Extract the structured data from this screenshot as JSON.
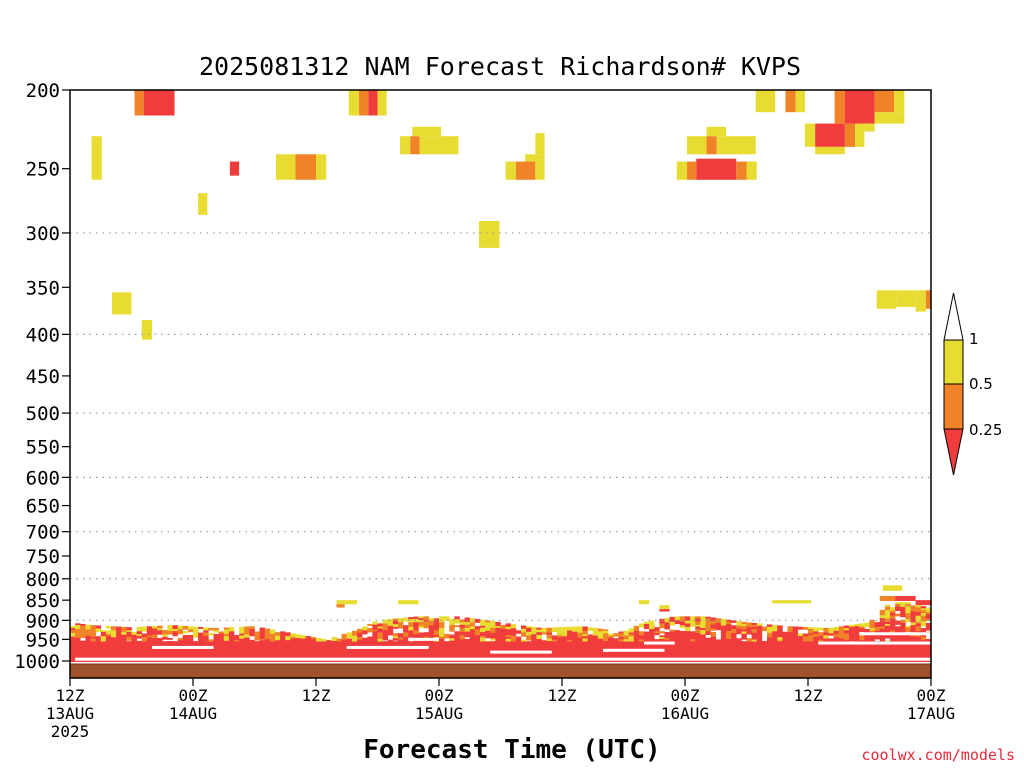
{
  "chart_data": {
    "type": "heatmap",
    "title": "2025081312 NAM Forecast Richardson# KVPS",
    "xlabel": "Forecast Time (UTC)",
    "ylabel": "",
    "y_axis": {
      "scale": "pressure (log)",
      "ticks": [
        "200",
        "250",
        "300",
        "350",
        "400",
        "450",
        "500",
        "550",
        "600",
        "650",
        "700",
        "750",
        "800",
        "850",
        "900",
        "950",
        "1000"
      ],
      "gridlines": [
        "300",
        "400",
        "500",
        "600",
        "700",
        "800",
        "900"
      ]
    },
    "x_axis": {
      "hour_range": [
        0,
        84
      ],
      "ticks": [
        {
          "hour": 0,
          "label": "12Z",
          "date": "13AUG",
          "year": "2025"
        },
        {
          "hour": 12,
          "label": "00Z",
          "date": "14AUG",
          "year": ""
        },
        {
          "hour": 24,
          "label": "12Z",
          "date": "",
          "year": ""
        },
        {
          "hour": 36,
          "label": "00Z",
          "date": "15AUG",
          "year": ""
        },
        {
          "hour": 48,
          "label": "12Z",
          "date": "",
          "year": ""
        },
        {
          "hour": 60,
          "label": "00Z",
          "date": "16AUG",
          "year": ""
        },
        {
          "hour": 72,
          "label": "12Z",
          "date": "",
          "year": ""
        },
        {
          "hour": 84,
          "label": "00Z",
          "date": "17AUG",
          "year": ""
        }
      ]
    },
    "colorbar": {
      "labels": [
        "1",
        "0.5",
        "0.25"
      ],
      "bins": [
        {
          "range": "0.5-1",
          "color": "#e8dc32"
        },
        {
          "range": "0.25-0.5",
          "color": "#f08228"
        },
        {
          "range": "<0.25",
          "color": "#f03c3c"
        }
      ],
      "above_color": "#ffffff"
    },
    "colors": {
      "yellow": "#e8dc32",
      "orange": "#f08228",
      "red": "#f03c3c",
      "ground": "#a0522d"
    },
    "regions": [
      {
        "h0": 6.3,
        "h1": 7.2,
        "p0": 200,
        "p1": 215,
        "c": "orange"
      },
      {
        "h0": 7.2,
        "h1": 10.2,
        "p0": 200,
        "p1": 215,
        "c": "red"
      },
      {
        "h0": 2.1,
        "h1": 3.1,
        "p0": 228,
        "p1": 258,
        "c": "yellow"
      },
      {
        "h0": 12.5,
        "h1": 13.4,
        "p0": 268,
        "p1": 285,
        "c": "yellow"
      },
      {
        "h0": 15.6,
        "h1": 16.5,
        "p0": 245,
        "p1": 255,
        "c": "red"
      },
      {
        "h0": 20.1,
        "h1": 22.0,
        "p0": 240,
        "p1": 258,
        "c": "yellow"
      },
      {
        "h0": 22.0,
        "h1": 24.0,
        "p0": 240,
        "p1": 258,
        "c": "orange"
      },
      {
        "h0": 24.0,
        "h1": 25.0,
        "p0": 240,
        "p1": 258,
        "c": "yellow"
      },
      {
        "h0": 27.2,
        "h1": 28.2,
        "p0": 200,
        "p1": 215,
        "c": "yellow"
      },
      {
        "h0": 28.2,
        "h1": 29.1,
        "p0": 200,
        "p1": 215,
        "c": "orange"
      },
      {
        "h0": 29.1,
        "h1": 30.0,
        "p0": 200,
        "p1": 215,
        "c": "red"
      },
      {
        "h0": 30.0,
        "h1": 30.9,
        "p0": 200,
        "p1": 215,
        "c": "yellow"
      },
      {
        "h0": 32.2,
        "h1": 33.2,
        "p0": 228,
        "p1": 240,
        "c": "yellow"
      },
      {
        "h0": 33.2,
        "h1": 34.1,
        "p0": 228,
        "p1": 240,
        "c": "orange"
      },
      {
        "h0": 34.1,
        "h1": 37.9,
        "p0": 228,
        "p1": 240,
        "c": "yellow"
      },
      {
        "h0": 33.4,
        "h1": 36.2,
        "p0": 222,
        "p1": 228,
        "c": "yellow"
      },
      {
        "h0": 39.9,
        "h1": 41.9,
        "p0": 290,
        "p1": 313,
        "c": "yellow"
      },
      {
        "h0": 42.5,
        "h1": 43.5,
        "p0": 245,
        "p1": 258,
        "c": "yellow"
      },
      {
        "h0": 43.5,
        "h1": 45.4,
        "p0": 245,
        "p1": 258,
        "c": "orange"
      },
      {
        "h0": 45.4,
        "h1": 46.3,
        "p0": 245,
        "p1": 258,
        "c": "yellow"
      },
      {
        "h0": 44.4,
        "h1": 46.3,
        "p0": 240,
        "p1": 245,
        "c": "yellow"
      },
      {
        "h0": 45.4,
        "h1": 46.3,
        "p0": 226,
        "p1": 240,
        "c": "yellow"
      },
      {
        "h0": 4.1,
        "h1": 6.0,
        "p0": 355,
        "p1": 378,
        "c": "yellow"
      },
      {
        "h0": 7.0,
        "h1": 8.0,
        "p0": 384,
        "p1": 406,
        "c": "yellow"
      },
      {
        "h0": 59.2,
        "h1": 60.2,
        "p0": 245,
        "p1": 258,
        "c": "yellow"
      },
      {
        "h0": 60.2,
        "h1": 61.1,
        "p0": 245,
        "p1": 258,
        "c": "orange"
      },
      {
        "h0": 61.1,
        "h1": 65.0,
        "p0": 243,
        "p1": 258,
        "c": "red"
      },
      {
        "h0": 65.0,
        "h1": 66.0,
        "p0": 245,
        "p1": 258,
        "c": "orange"
      },
      {
        "h0": 66.0,
        "h1": 67.0,
        "p0": 245,
        "p1": 258,
        "c": "yellow"
      },
      {
        "h0": 60.2,
        "h1": 62.1,
        "p0": 228,
        "p1": 240,
        "c": "yellow"
      },
      {
        "h0": 62.1,
        "h1": 63.1,
        "p0": 228,
        "p1": 240,
        "c": "orange"
      },
      {
        "h0": 63.1,
        "h1": 66.9,
        "p0": 228,
        "p1": 240,
        "c": "yellow"
      },
      {
        "h0": 62.1,
        "h1": 64.0,
        "p0": 222,
        "p1": 228,
        "c": "yellow"
      },
      {
        "h0": 66.9,
        "h1": 68.8,
        "p0": 200,
        "p1": 213,
        "c": "yellow"
      },
      {
        "h0": 69.8,
        "h1": 70.8,
        "p0": 200,
        "p1": 213,
        "c": "orange"
      },
      {
        "h0": 70.8,
        "h1": 71.7,
        "p0": 200,
        "p1": 213,
        "c": "yellow"
      },
      {
        "h0": 71.7,
        "h1": 72.7,
        "p0": 220,
        "p1": 235,
        "c": "yellow"
      },
      {
        "h0": 72.7,
        "h1": 75.6,
        "p0": 220,
        "p1": 235,
        "c": "red"
      },
      {
        "h0": 75.6,
        "h1": 76.6,
        "p0": 220,
        "p1": 235,
        "c": "orange"
      },
      {
        "h0": 76.6,
        "h1": 77.5,
        "p0": 220,
        "p1": 235,
        "c": "yellow"
      },
      {
        "h0": 72.7,
        "h1": 75.6,
        "p0": 235,
        "p1": 240,
        "c": "yellow"
      },
      {
        "h0": 74.6,
        "h1": 75.6,
        "p0": 200,
        "p1": 220,
        "c": "orange"
      },
      {
        "h0": 75.6,
        "h1": 78.5,
        "p0": 200,
        "p1": 220,
        "c": "red"
      },
      {
        "h0": 78.5,
        "h1": 80.4,
        "p0": 200,
        "p1": 213,
        "c": "orange"
      },
      {
        "h0": 80.4,
        "h1": 81.4,
        "p0": 200,
        "p1": 213,
        "c": "yellow"
      },
      {
        "h0": 78.5,
        "h1": 81.4,
        "p0": 213,
        "p1": 220,
        "c": "yellow"
      },
      {
        "h0": 77.5,
        "h1": 78.5,
        "p0": 220,
        "p1": 225,
        "c": "yellow"
      },
      {
        "h0": 78.7,
        "h1": 80.6,
        "p0": 353,
        "p1": 372,
        "c": "yellow"
      },
      {
        "h0": 80.6,
        "h1": 82.5,
        "p0": 353,
        "p1": 370,
        "c": "yellow"
      },
      {
        "h0": 82.5,
        "h1": 83.5,
        "p0": 353,
        "p1": 375,
        "c": "yellow"
      },
      {
        "h0": 83.5,
        "h1": 84.0,
        "p0": 353,
        "p1": 372,
        "c": "orange"
      }
    ],
    "boundary_layer": {
      "base_bands": [
        {
          "p0": 975,
          "p1": 1013,
          "c": "red"
        },
        {
          "p0": 955,
          "p1": 975,
          "c": "red"
        }
      ],
      "white_streaks": [
        {
          "h0": 0.5,
          "h1": 84,
          "p": 1005
        },
        {
          "h0": 8.0,
          "h1": 14.0,
          "p": 972
        },
        {
          "h0": 27.0,
          "h1": 35.0,
          "p": 972
        },
        {
          "h0": 33.0,
          "h1": 36.0,
          "p": 950
        },
        {
          "h0": 41.0,
          "h1": 47.0,
          "p": 985
        },
        {
          "h0": 52.0,
          "h1": 58.0,
          "p": 980
        },
        {
          "h0": 56.0,
          "h1": 59.0,
          "p": 960
        },
        {
          "h0": 73.0,
          "h1": 84.0,
          "p": 960
        },
        {
          "h0": 77.0,
          "h1": 84.0,
          "p": 935
        }
      ],
      "top_envelope": [
        {
          "h": 0,
          "p": 905
        },
        {
          "h": 2,
          "p": 912
        },
        {
          "h": 6,
          "p": 918
        },
        {
          "h": 10,
          "p": 912
        },
        {
          "h": 14,
          "p": 920
        },
        {
          "h": 18,
          "p": 915
        },
        {
          "h": 22,
          "p": 935
        },
        {
          "h": 25,
          "p": 950
        },
        {
          "h": 28,
          "p": 925
        },
        {
          "h": 30,
          "p": 900
        },
        {
          "h": 34,
          "p": 890
        },
        {
          "h": 38,
          "p": 890
        },
        {
          "h": 42,
          "p": 905
        },
        {
          "h": 46,
          "p": 920
        },
        {
          "h": 50,
          "p": 915
        },
        {
          "h": 54,
          "p": 930
        },
        {
          "h": 56,
          "p": 905
        },
        {
          "h": 59,
          "p": 890
        },
        {
          "h": 62,
          "p": 890
        },
        {
          "h": 66,
          "p": 905
        },
        {
          "h": 70,
          "p": 915
        },
        {
          "h": 74,
          "p": 920
        },
        {
          "h": 78,
          "p": 905
        },
        {
          "h": 80,
          "p": 855
        },
        {
          "h": 82,
          "p": 855
        },
        {
          "h": 84,
          "p": 870
        }
      ],
      "sparse_patches": [
        {
          "h0": 26.0,
          "h1": 28.0,
          "p0": 850,
          "p1": 860,
          "c": "yellow"
        },
        {
          "h0": 26.0,
          "h1": 26.8,
          "p0": 860,
          "p1": 868,
          "c": "orange"
        },
        {
          "h0": 32.0,
          "h1": 34.0,
          "p0": 850,
          "p1": 860,
          "c": "yellow"
        },
        {
          "h0": 55.5,
          "h1": 56.5,
          "p0": 850,
          "p1": 860,
          "c": "yellow"
        },
        {
          "h0": 57.5,
          "h1": 58.5,
          "p0": 862,
          "p1": 872,
          "c": "yellow"
        },
        {
          "h0": 57.5,
          "h1": 58.5,
          "p0": 872,
          "p1": 878,
          "c": "red"
        },
        {
          "h0": 68.5,
          "h1": 72.3,
          "p0": 850,
          "p1": 858,
          "c": "yellow"
        },
        {
          "h0": 79.3,
          "h1": 81.2,
          "p0": 815,
          "p1": 828,
          "c": "yellow"
        },
        {
          "h0": 79.0,
          "h1": 80.5,
          "p0": 840,
          "p1": 852,
          "c": "orange"
        },
        {
          "h0": 80.5,
          "h1": 82.5,
          "p0": 840,
          "p1": 852,
          "c": "red"
        },
        {
          "h0": 82.5,
          "h1": 84.0,
          "p0": 850,
          "p1": 862,
          "c": "red"
        }
      ]
    }
  },
  "labels": {
    "title": "2025081312 NAM Forecast Richardson# KVPS",
    "xlabel": "Forecast Time (UTC)",
    "credit": "coolwx.com/models"
  }
}
